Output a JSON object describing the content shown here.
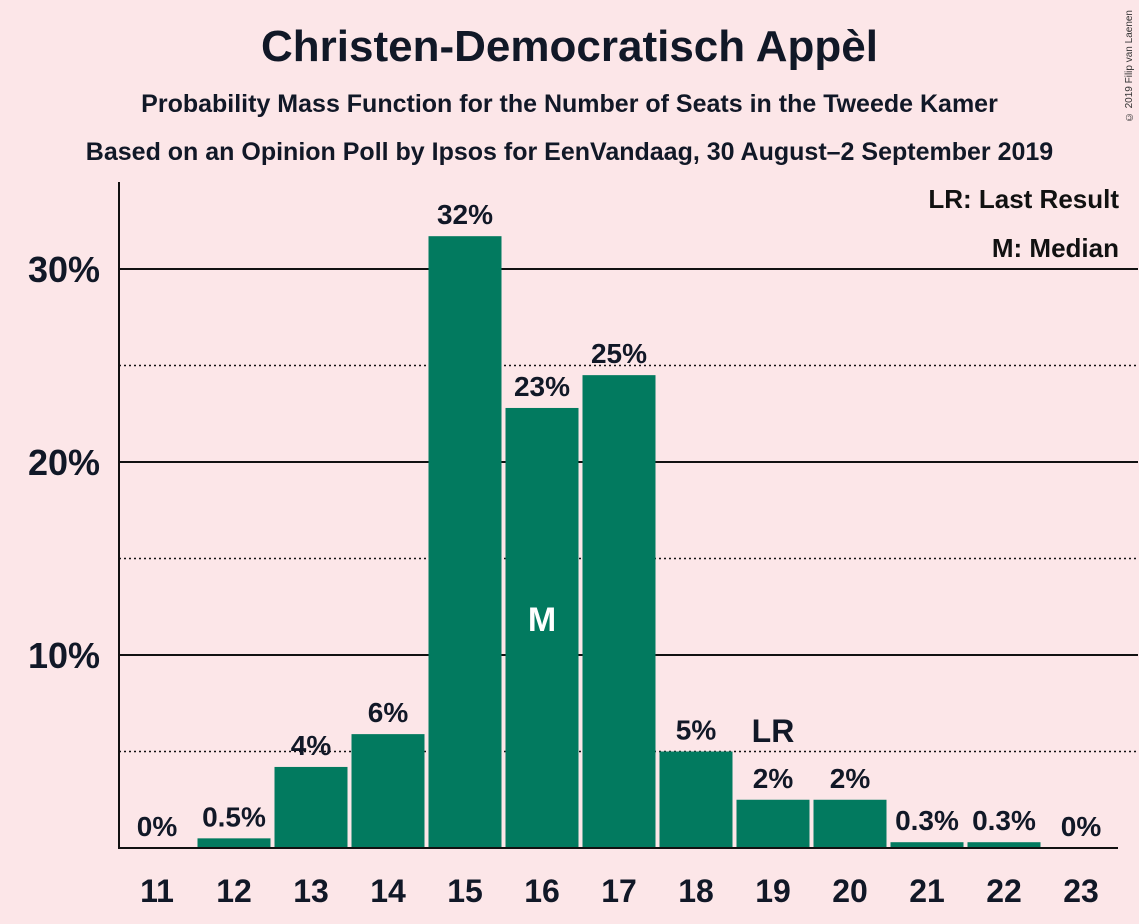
{
  "title": "Christen-Democratisch Appèl",
  "subtitle1": "Probability Mass Function for the Number of Seats in the Tweede Kamer",
  "subtitle2": "Based on an Opinion Poll by Ipsos for EenVandaag, 30 August–2 September 2019",
  "copyright": "© 2019 Filip van Laenen",
  "legend": {
    "last_result": "LR: Last Result",
    "median": "M: Median"
  },
  "colors": {
    "bar": "#027a5f",
    "background": "#fce6e8"
  },
  "chart_data": {
    "type": "bar",
    "categories": [
      "11",
      "12",
      "13",
      "14",
      "15",
      "16",
      "17",
      "18",
      "19",
      "20",
      "21",
      "22",
      "23"
    ],
    "values": [
      0,
      0.5,
      4.2,
      5.9,
      31.7,
      22.8,
      24.5,
      5.0,
      2.5,
      2.5,
      0.3,
      0.3,
      0
    ],
    "data_labels": [
      "0%",
      "0.5%",
      "4%",
      "6%",
      "32%",
      "23%",
      "25%",
      "5%",
      "2%",
      "2%",
      "0.3%",
      "0.3%",
      "0%"
    ],
    "ylim": [
      0,
      34
    ],
    "yticks": [
      10,
      20,
      30
    ],
    "ytick_labels": [
      "10%",
      "20%",
      "30%"
    ],
    "minor_gridlines": [
      5,
      15,
      25
    ],
    "median_category": "16",
    "median_label": "M",
    "last_result_category": "19",
    "last_result_label": "LR"
  }
}
